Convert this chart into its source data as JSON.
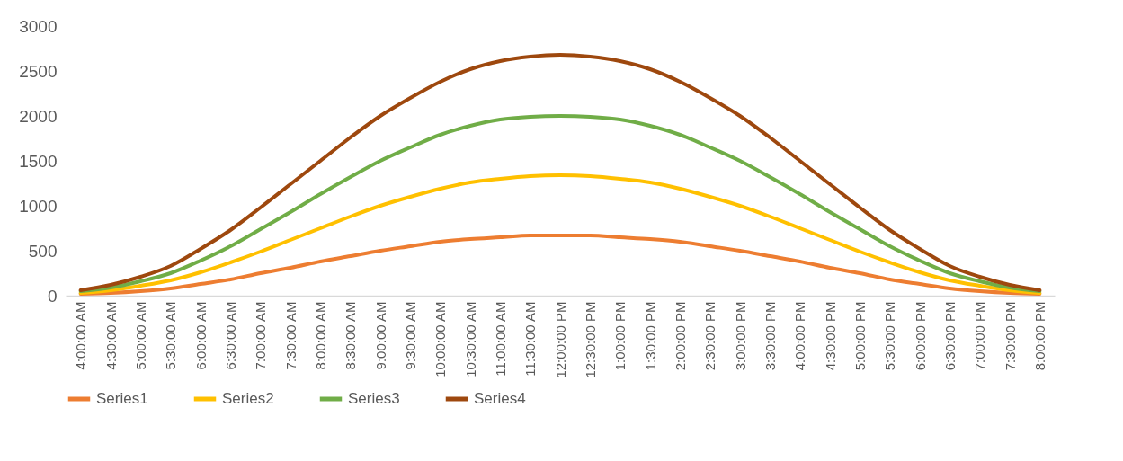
{
  "chart_data": {
    "type": "line",
    "categories": [
      "4:00:00 AM",
      "4:30:00 AM",
      "5:00:00 AM",
      "5:30:00 AM",
      "6:00:00 AM",
      "6:30:00 AM",
      "7:00:00 AM",
      "7:30:00 AM",
      "8:00:00 AM",
      "8:30:00 AM",
      "9:00:00 AM",
      "9:30:00 AM",
      "10:00:00 AM",
      "10:30:00 AM",
      "11:00:00 AM",
      "11:30:00 AM",
      "12:00:00 PM",
      "12:30:00 PM",
      "1:00:00 PM",
      "1:30:00 PM",
      "2:00:00 PM",
      "2:30:00 PM",
      "3:00:00 PM",
      "3:30:00 PM",
      "4:00:00 PM",
      "4:30:00 PM",
      "5:00:00 PM",
      "5:30:00 PM",
      "6:00:00 PM",
      "6:30:00 PM",
      "7:00:00 PM",
      "7:30:00 PM",
      "8:00:00 PM"
    ],
    "series": [
      {
        "name": "Series1",
        "color": "#ed7d31",
        "values": [
          20,
          30,
          50,
          80,
          130,
          180,
          250,
          310,
          380,
          440,
          500,
          550,
          600,
          630,
          650,
          670,
          670,
          670,
          650,
          630,
          600,
          550,
          500,
          440,
          380,
          310,
          250,
          180,
          130,
          80,
          50,
          30,
          20
        ]
      },
      {
        "name": "Series2",
        "color": "#ffc000",
        "values": [
          30,
          60,
          110,
          170,
          260,
          370,
          490,
          620,
          750,
          880,
          1000,
          1100,
          1190,
          1260,
          1300,
          1330,
          1340,
          1330,
          1300,
          1260,
          1190,
          1100,
          1000,
          880,
          750,
          620,
          490,
          370,
          260,
          170,
          110,
          60,
          30
        ]
      },
      {
        "name": "Series3",
        "color": "#70ad47",
        "values": [
          50,
          90,
          160,
          250,
          390,
          550,
          740,
          930,
          1130,
          1320,
          1500,
          1650,
          1790,
          1890,
          1960,
          1990,
          2000,
          1990,
          1960,
          1890,
          1790,
          1650,
          1500,
          1320,
          1130,
          930,
          740,
          550,
          390,
          250,
          160,
          90,
          50
        ]
      },
      {
        "name": "Series4",
        "color": "#9e480e",
        "values": [
          60,
          120,
          210,
          330,
          520,
          730,
          980,
          1240,
          1500,
          1760,
          2000,
          2200,
          2380,
          2520,
          2610,
          2660,
          2680,
          2660,
          2610,
          2520,
          2380,
          2200,
          2000,
          1760,
          1500,
          1240,
          980,
          730,
          520,
          330,
          210,
          120,
          60
        ]
      }
    ],
    "ylim": [
      0,
      3000
    ],
    "yticks": [
      0,
      500,
      1000,
      1500,
      2000,
      2500,
      3000
    ],
    "grid": false,
    "legend": "bottom",
    "line_style": "solid",
    "marker": "none"
  }
}
